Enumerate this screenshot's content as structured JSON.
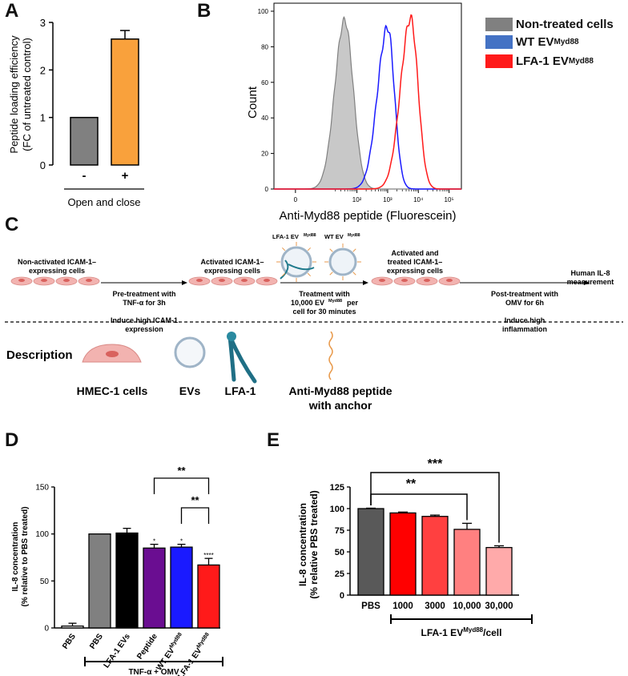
{
  "panels": {
    "A": "A",
    "B": "B",
    "C": "C",
    "D": "D",
    "E": "E"
  },
  "colors": {
    "gray": "#808080",
    "orange": "#f9a13c",
    "purple": "#6a0d91",
    "blue": "#1a1aff",
    "red": "#ff1a1a",
    "eBars": [
      "#595959",
      "#ff0000",
      "#ff4040",
      "#ff8080",
      "#ffaaaa"
    ]
  },
  "chart_data": [
    {
      "id": "A",
      "type": "bar",
      "ylabel": "Peptide loading efficiency",
      "ylabel2": "(FC of untreated control)",
      "categories": [
        "-",
        "+"
      ],
      "values": [
        1.0,
        2.65
      ],
      "errors": [
        0,
        0.18
      ],
      "yticks": [
        "0",
        "1",
        "2",
        "3"
      ],
      "ylim": [
        0,
        3
      ],
      "group_label": "Open and close"
    },
    {
      "id": "B",
      "type": "line",
      "xlabel": "Anti-Myd88 peptide (Fluorescein)",
      "ylabel": "Count",
      "yticks": [
        "0",
        "20",
        "40",
        "60",
        "80",
        "100"
      ],
      "xticks": [
        "0",
        "10²",
        "10³",
        "10⁴",
        "10⁵"
      ],
      "ylim": [
        0,
        100
      ],
      "legend": [
        "Non-treated cells",
        "WT EV",
        "LFA-1 EV"
      ],
      "legend_sup": "Myd88",
      "series": [
        {
          "name": "Non-treated cells",
          "peak_log10": 1.6,
          "peak": 95
        },
        {
          "name": "WT EV",
          "peak_log10": 3.0,
          "peak": 91
        },
        {
          "name": "LFA-1 EV",
          "peak_log10": 3.75,
          "peak": 96
        }
      ]
    },
    {
      "id": "D",
      "type": "bar",
      "ylabel": "IL-8 concentration",
      "ylabel2": "(% relative to PBS treated)",
      "categories": [
        "PBS",
        "PBS",
        "LFA-1 EVs",
        "Peptide",
        "WT EV",
        "LFA-1 EV"
      ],
      "sup": [
        "",
        "",
        "",
        "",
        "Myd88",
        "Myd88"
      ],
      "values": [
        2,
        100,
        101,
        85,
        86,
        67
      ],
      "errors": [
        3,
        0,
        5,
        4,
        3,
        7
      ],
      "marks": [
        "",
        "",
        "",
        "*",
        "*",
        "****"
      ],
      "yticks": [
        "0",
        "50",
        "100",
        "150"
      ],
      "ylim": [
        0,
        150
      ],
      "group_label": "TNF-α + OMV",
      "sig": [
        "**",
        "**"
      ]
    },
    {
      "id": "E",
      "type": "bar",
      "ylabel": "IL-8 concentration",
      "ylabel2": "(% relative PBS treated)",
      "categories": [
        "PBS",
        "1000",
        "3000",
        "10,000",
        "30,000"
      ],
      "values": [
        100,
        95,
        91,
        76,
        55
      ],
      "errors": [
        0.5,
        1,
        1.5,
        7,
        2
      ],
      "yticks": [
        "0",
        "25",
        "50",
        "75",
        "100",
        "125"
      ],
      "ylim": [
        0,
        125
      ],
      "group_label": "LFA-1 EV",
      "group_sup": "Myd88",
      "group_suffix": "/cell",
      "sig": [
        "**",
        "***"
      ]
    }
  ],
  "schematic": {
    "step1": [
      "Non-activated ICAM-1–",
      "expressing cells"
    ],
    "arrow1": [
      "Pre-treatment with",
      "TNF-α for 3h",
      "",
      "Induce high ICAM-1",
      "expression"
    ],
    "step2": [
      "Activated ICAM-1–",
      "expressing cells"
    ],
    "ev_lfa": "LFA-1 EV",
    "ev_wt": "WT EV",
    "ev_sup": "Myd88",
    "arrow2": [
      "Treatment with",
      "10,000 EV",
      "per",
      "cell for 30 minutes"
    ],
    "step3": [
      "Activated and",
      "treated ICAM-1–",
      "expressing cells"
    ],
    "arrow3": [
      "Post-treatment with",
      "OMV for 6h",
      "",
      "Induce high",
      "inflammation"
    ],
    "step4": [
      "Human IL-8",
      "measurement"
    ]
  },
  "description": {
    "title": "Description",
    "hmec": "HMEC-1 cells",
    "evs": "EVs",
    "lfa": "LFA-1",
    "peptide": [
      "Anti-Myd88 peptide",
      "with anchor"
    ]
  }
}
